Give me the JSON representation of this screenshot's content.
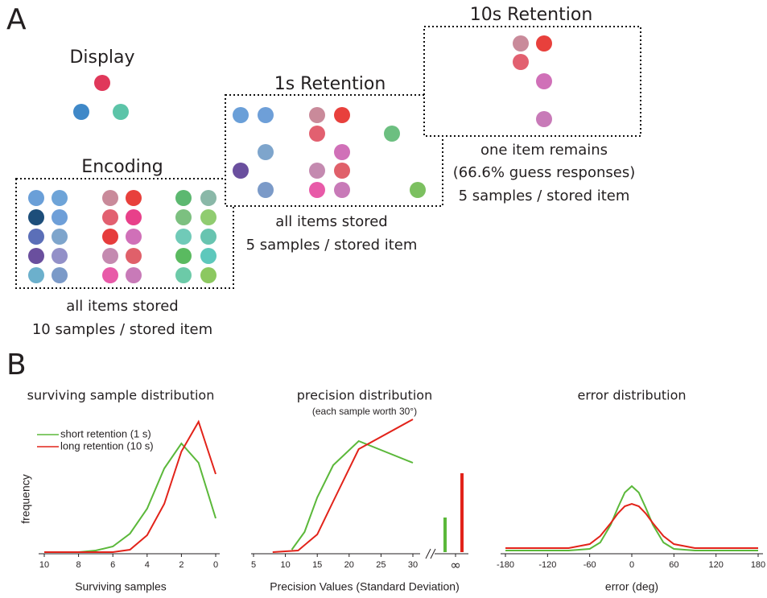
{
  "panel_a": {
    "label": "A",
    "display": {
      "title": "Display"
    },
    "encoding": {
      "title": "Encoding",
      "caption": [
        "all items stored",
        "10 samples / stored item"
      ]
    },
    "retention_1s": {
      "title": "1s Retention",
      "caption": [
        "all items stored",
        "5 samples / stored item"
      ]
    },
    "retention_10s": {
      "title": "10s Retention",
      "caption": [
        "one item remains",
        "(66.6% guess responses)",
        "5 samples / stored item"
      ]
    }
  },
  "panel_b": {
    "label": "B"
  },
  "chart_data": [
    {
      "type": "line",
      "title": "surviving sample distribution",
      "x_label": "Surviving samples",
      "y_label": "frequency",
      "x": [
        10,
        9,
        8,
        7,
        6,
        5,
        4,
        3,
        2,
        1,
        0
      ],
      "xlim": [
        10,
        0
      ],
      "xticks": [
        10,
        8,
        6,
        4,
        2,
        0
      ],
      "ylim": [
        0,
        170
      ],
      "grid": false,
      "legend": "upper-left",
      "series": [
        {
          "name": "short retention (1 s)",
          "color": "#5bb83a",
          "values": [
            0,
            0,
            0,
            2,
            7,
            23,
            54,
            104,
            135,
            111,
            42
          ]
        },
        {
          "name": "long retention (10 s)",
          "color": "#e2231a",
          "values": [
            0,
            0,
            0,
            0,
            0,
            3,
            21,
            60,
            125,
            162,
            97
          ]
        }
      ]
    },
    {
      "type": "line",
      "title": "precision distribution",
      "subtitle": "(each sample worth 30°)",
      "x_label": "Precision Values (Standard Deviation)",
      "xlim": [
        5,
        30
      ],
      "xticks": [
        5,
        10,
        15,
        20,
        25,
        30
      ],
      "infinity_tick": "∞",
      "ylim": [
        0,
        170
      ],
      "grid": false,
      "series": [
        {
          "color": "#5bb83a",
          "x": [
            11,
            13,
            15,
            17.5,
            21.5,
            30
          ],
          "values": [
            3,
            25,
            68,
            108,
            138,
            111
          ],
          "infinity_value": 43
        },
        {
          "color": "#e2231a",
          "x": [
            8,
            12,
            15,
            17.5,
            21.5,
            30
          ],
          "values": [
            0,
            2,
            22,
            63,
            128,
            165
          ],
          "infinity_value": 98
        }
      ]
    },
    {
      "type": "line",
      "title": "error distribution",
      "x_label": "error (deg)",
      "x": [
        -180,
        -150,
        -120,
        -90,
        -60,
        -45,
        -30,
        -20,
        -10,
        0,
        10,
        20,
        30,
        45,
        60,
        90,
        120,
        150,
        180
      ],
      "xlim": [
        -180,
        180
      ],
      "xticks": [
        -180,
        -120,
        -60,
        0,
        60,
        120,
        180
      ],
      "ylim": [
        0,
        170
      ],
      "grid": false,
      "series": [
        {
          "color": "#5bb83a",
          "values": [
            2,
            2,
            2,
            2,
            4,
            12,
            34,
            55,
            74,
            82,
            74,
            55,
            34,
            12,
            4,
            2,
            2,
            2,
            2
          ]
        },
        {
          "color": "#e2231a",
          "values": [
            5,
            5,
            5,
            5,
            10,
            20,
            36,
            48,
            57,
            60,
            57,
            48,
            36,
            20,
            10,
            5,
            5,
            5,
            5
          ]
        }
      ]
    }
  ]
}
